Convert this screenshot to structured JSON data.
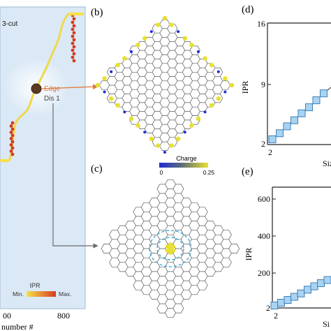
{
  "panels": {
    "a": {
      "cut_label": "3-cut",
      "edge_label": "Edge",
      "dis_label": "Dis 1",
      "x_ticks": [
        "00",
        "800"
      ],
      "x_label": "number #",
      "ipr_label": "IPR",
      "ipr_min": "Min.",
      "ipr_max": "Max."
    },
    "b": {
      "label": "(b)",
      "charge_label": "Charge",
      "charge_min": "0",
      "charge_max": "0.25"
    },
    "c": {
      "label": "(c)"
    },
    "d": {
      "label": "(d)",
      "y_label": "IPR",
      "y_ticks": [
        "16",
        "9",
        "2"
      ],
      "x_tick": "2",
      "x_label_partial": "Siz"
    },
    "e": {
      "label": "(e)",
      "y_label": "IPR",
      "y_ticks": [
        "600",
        "400",
        "200",
        "2"
      ],
      "x_tick": "2",
      "x_label_partial": "Si"
    }
  },
  "colors": {
    "panel_bg": "#dbe9f6",
    "ipr_low": "#f6e04a",
    "ipr_high": "#d63b1f",
    "edge_arrow": "#e07a3c",
    "dis_arrow": "#6b6b6b",
    "charge_low": "#1f2bd6",
    "charge_high": "#e8e030",
    "marker": "#a9d3f2",
    "dashed_ring": "#2aa6d6"
  },
  "chart_data": [
    {
      "type": "scatter",
      "panel": "d",
      "ylabel": "IPR",
      "ylim": [
        2,
        16
      ],
      "y_ticks": [
        2,
        9,
        16
      ],
      "x_ticks": [
        2
      ],
      "x": [
        2,
        3,
        4,
        5,
        6,
        7,
        8,
        9,
        10,
        11
      ],
      "y": [
        2.6,
        3.3,
        4.1,
        4.8,
        5.6,
        6.3,
        7.1,
        7.9,
        8.6,
        9.0
      ]
    },
    {
      "type": "scatter",
      "panel": "e",
      "ylabel": "IPR",
      "ylim": [
        2,
        650
      ],
      "y_ticks": [
        2,
        200,
        400,
        600
      ],
      "x_ticks": [
        2
      ],
      "x": [
        2,
        3,
        4,
        5,
        6,
        7,
        8,
        9,
        10,
        11
      ],
      "y": [
        15,
        30,
        45,
        62,
        80,
        100,
        118,
        135,
        152,
        170
      ]
    }
  ]
}
